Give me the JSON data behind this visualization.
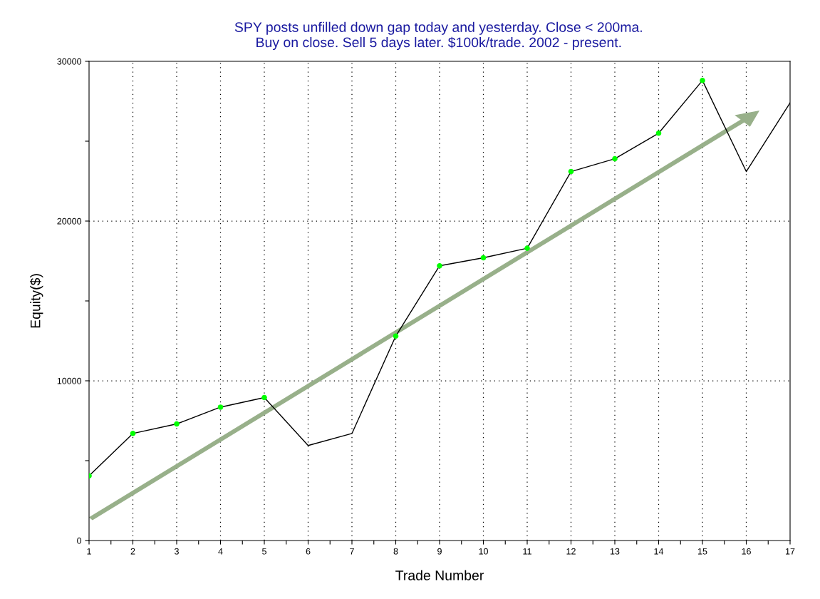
{
  "chart_data": {
    "type": "line",
    "title": "SPY posts unfilled down gap today and yesterday. Close < 200ma.\nBuy on close. Sell 5 days later. $100k/trade. 2002 - present.",
    "xlabel": "Trade Number",
    "ylabel": "Equity($)",
    "x": [
      1,
      2,
      3,
      4,
      5,
      6,
      7,
      8,
      9,
      10,
      11,
      12,
      13,
      14,
      15,
      16,
      17
    ],
    "series": [
      {
        "color": "#000000",
        "marker": "none",
        "values": [
          4050,
          6700,
          7300,
          8350,
          8950,
          5950,
          6700,
          12800,
          17200,
          17700,
          18300,
          23100,
          23900,
          25500,
          28800,
          23100,
          27400
        ]
      },
      {
        "type": "scatter",
        "color": "#00ff00",
        "marker": "circle",
        "values": [
          4050,
          6700,
          7300,
          8350,
          8950,
          null,
          null,
          12800,
          17200,
          17700,
          18300,
          23100,
          23900,
          25500,
          28800,
          null,
          null
        ]
      }
    ],
    "xlim": [
      1,
      17
    ],
    "xticks": [
      1,
      {
        "value": 1.5,
        "label": null
      },
      2,
      {
        "value": 2.5,
        "label": null
      },
      3,
      {
        "value": 3.5,
        "label": null
      },
      4,
      {
        "value": 4.5,
        "label": null
      },
      5,
      {
        "value": 5.5,
        "label": null
      },
      6,
      {
        "value": 6.5,
        "label": null
      },
      7,
      {
        "value": 7.5,
        "label": null
      },
      8,
      {
        "value": 8.5,
        "label": null
      },
      9,
      {
        "value": 9.5,
        "label": null
      },
      10,
      {
        "value": 10.5,
        "label": null
      },
      11,
      {
        "value": 11.5,
        "label": null
      },
      12,
      {
        "value": 12.5,
        "label": null
      },
      13,
      {
        "value": 13.5,
        "label": null
      },
      14,
      {
        "value": 14.5,
        "label": null
      },
      15,
      {
        "value": 15.5,
        "label": null
      },
      16,
      {
        "value": 16.5,
        "label": null
      },
      17
    ],
    "ylim": [
      0,
      30000
    ],
    "yticks": [
      0,
      {
        "value": 5000,
        "label": null
      },
      10000,
      {
        "value": 15000,
        "label": null
      },
      20000,
      {
        "value": 25000,
        "label": null
      },
      30000
    ],
    "grid": true
  }
}
